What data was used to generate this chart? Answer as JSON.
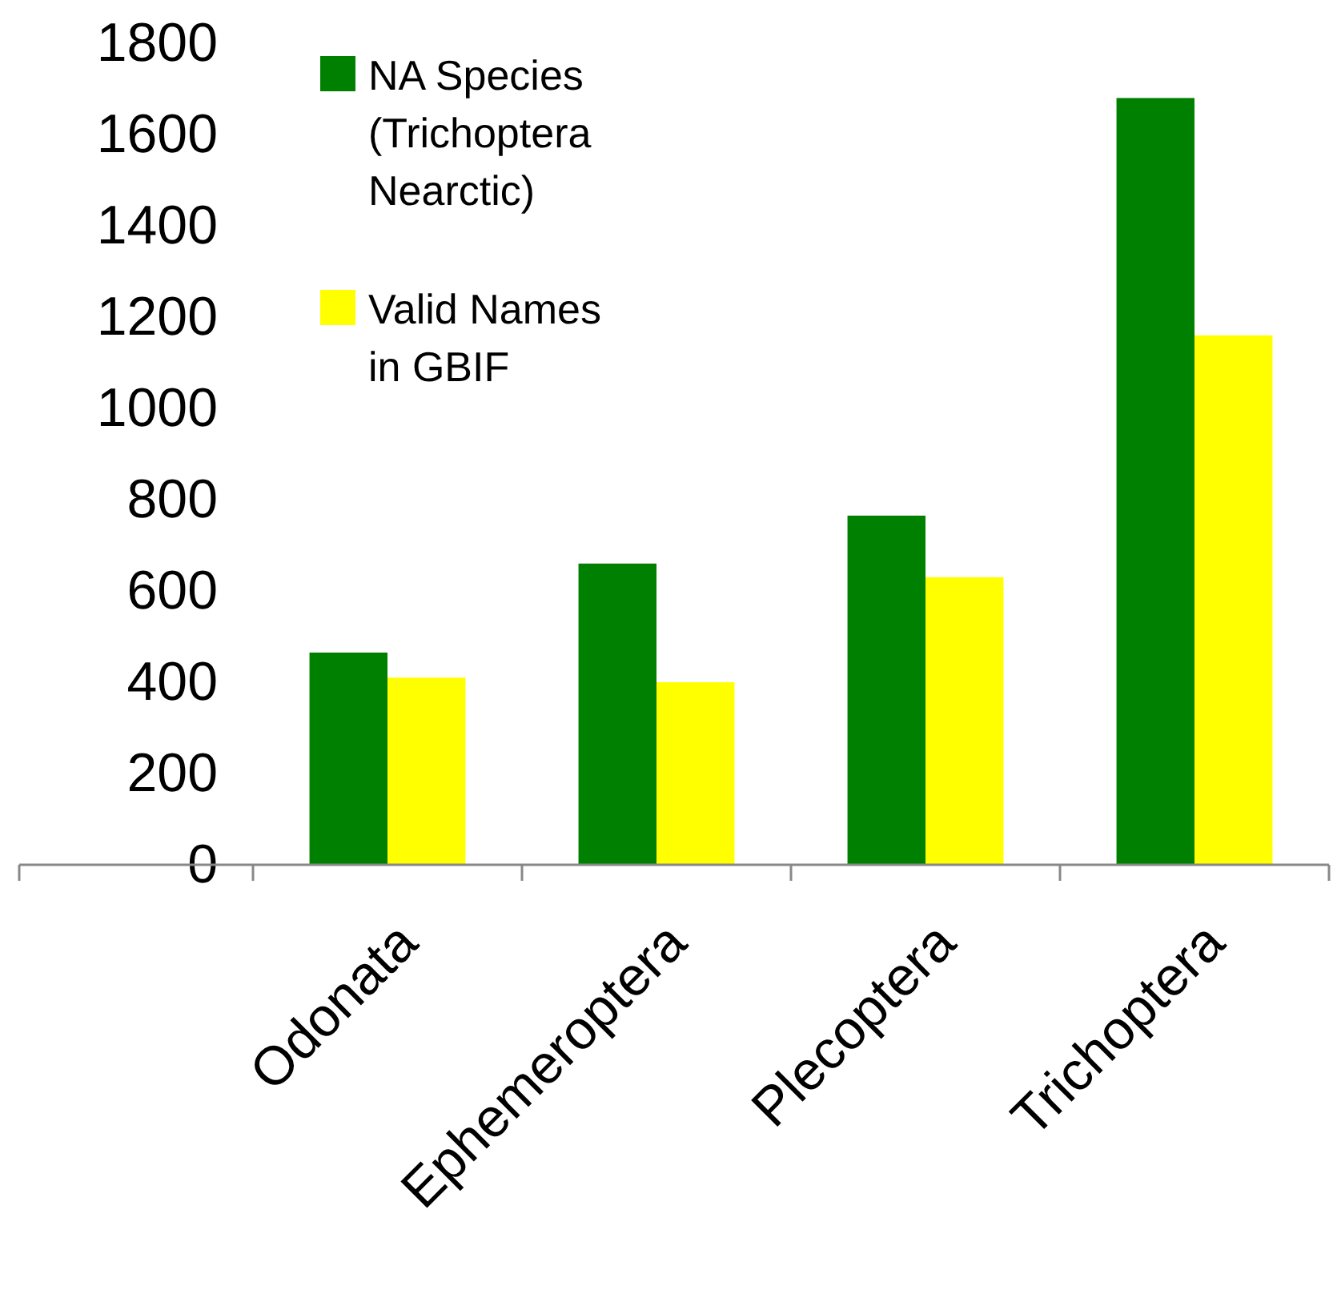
{
  "chart_data": {
    "type": "bar",
    "categories": [
      "Odonata",
      "Ephemeroptera",
      "Plecoptera",
      "Trichoptera"
    ],
    "series": [
      {
        "name": "NA Species (Trichoptera Nearctic)",
        "color": "#008000",
        "values": [
          465,
          660,
          765,
          1680
        ]
      },
      {
        "name": "Valid Names in GBIF",
        "color": "#ffff00",
        "values": [
          410,
          400,
          630,
          1160
        ]
      }
    ],
    "ylim": [
      0,
      1800
    ],
    "yticks": [
      0,
      200,
      400,
      600,
      800,
      1000,
      1200,
      1400,
      1600,
      1800
    ],
    "grid": false,
    "legend": "top left"
  }
}
